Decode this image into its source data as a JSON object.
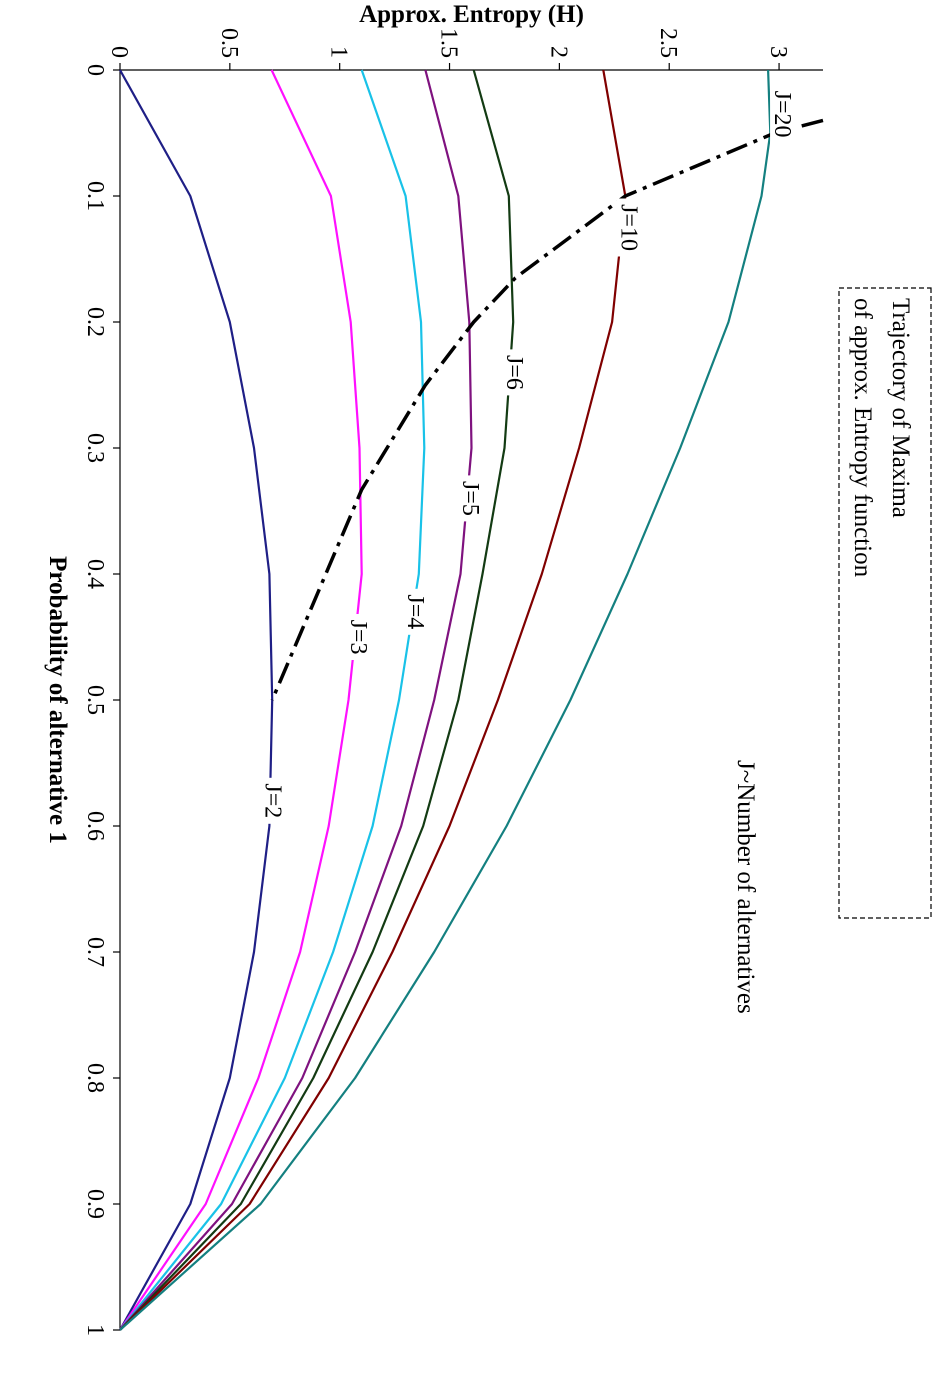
{
  "chart_data": {
    "type": "line",
    "orientation": "rotated-90-cw",
    "xlabel": "Probability of alternative 1",
    "ylabel": "Approx. Entropy (H)",
    "xlim": [
      0,
      1
    ],
    "ylim": [
      0,
      3.2
    ],
    "xticks": [
      "0",
      "0.1",
      "0.2",
      "0.3",
      "0.4",
      "0.5",
      "0.6",
      "0.7",
      "0.8",
      "0.9",
      "1"
    ],
    "yticks": [
      "0",
      "0.5",
      "1",
      "1.5",
      "2",
      "2.5",
      "3"
    ],
    "annotation": "J~Number of alternatives",
    "callout": {
      "lines": [
        "Trajectory of Maxima",
        "of approx. Entropy function"
      ]
    },
    "series": [
      {
        "name": "J=2",
        "color": "#1f1f86",
        "label_at": [
          0.58,
          0.68
        ],
        "points": [
          [
            0,
            0
          ],
          [
            0.1,
            0.32
          ],
          [
            0.2,
            0.5
          ],
          [
            0.3,
            0.61
          ],
          [
            0.4,
            0.68
          ],
          [
            0.5,
            0.693
          ],
          [
            0.6,
            0.68
          ],
          [
            0.7,
            0.61
          ],
          [
            0.8,
            0.5
          ],
          [
            0.9,
            0.32
          ],
          [
            1,
            0
          ]
        ]
      },
      {
        "name": "J=3",
        "color": "#ff10ff",
        "label_at": [
          0.45,
          1.07
        ],
        "points": [
          [
            0,
            0.69
          ],
          [
            0.1,
            0.96
          ],
          [
            0.2,
            1.05
          ],
          [
            0.3,
            1.09
          ],
          [
            0.4,
            1.1
          ],
          [
            0.5,
            1.04
          ],
          [
            0.6,
            0.95
          ],
          [
            0.7,
            0.82
          ],
          [
            0.8,
            0.63
          ],
          [
            0.9,
            0.39
          ],
          [
            1,
            0
          ]
        ]
      },
      {
        "name": "J=4",
        "color": "#19c2e8",
        "label_at": [
          0.43,
          1.33
        ],
        "points": [
          [
            0,
            1.1
          ],
          [
            0.1,
            1.3
          ],
          [
            0.2,
            1.37
          ],
          [
            0.3,
            1.385
          ],
          [
            0.4,
            1.36
          ],
          [
            0.5,
            1.27
          ],
          [
            0.6,
            1.15
          ],
          [
            0.7,
            0.97
          ],
          [
            0.8,
            0.75
          ],
          [
            0.9,
            0.46
          ],
          [
            1,
            0
          ]
        ]
      },
      {
        "name": "J=5",
        "color": "#7f127f",
        "label_at": [
          0.34,
          1.58
        ],
        "points": [
          [
            0,
            1.39
          ],
          [
            0.1,
            1.54
          ],
          [
            0.2,
            1.59
          ],
          [
            0.3,
            1.6
          ],
          [
            0.4,
            1.55
          ],
          [
            0.5,
            1.43
          ],
          [
            0.6,
            1.28
          ],
          [
            0.7,
            1.07
          ],
          [
            0.8,
            0.83
          ],
          [
            0.9,
            0.51
          ],
          [
            1,
            0
          ]
        ]
      },
      {
        "name": "J=6",
        "color": "#133b13",
        "label_at": [
          0.24,
          1.78
        ],
        "points": [
          [
            0,
            1.61
          ],
          [
            0.1,
            1.77
          ],
          [
            0.2,
            1.79
          ],
          [
            0.3,
            1.75
          ],
          [
            0.4,
            1.65
          ],
          [
            0.5,
            1.54
          ],
          [
            0.6,
            1.38
          ],
          [
            0.7,
            1.15
          ],
          [
            0.8,
            0.88
          ],
          [
            0.9,
            0.55
          ],
          [
            1,
            0
          ]
        ]
      },
      {
        "name": "J=10",
        "color": "#800000",
        "label_at": [
          0.125,
          2.3
        ],
        "points": [
          [
            0,
            2.2
          ],
          [
            0.1,
            2.3
          ],
          [
            0.2,
            2.24
          ],
          [
            0.3,
            2.09
          ],
          [
            0.4,
            1.92
          ],
          [
            0.5,
            1.72
          ],
          [
            0.6,
            1.5
          ],
          [
            0.7,
            1.24
          ],
          [
            0.8,
            0.95
          ],
          [
            0.9,
            0.59
          ],
          [
            1,
            0
          ]
        ]
      },
      {
        "name": "J=20",
        "color": "#148080",
        "label_at": [
          0.035,
          3.0
        ],
        "points": [
          [
            0,
            2.95
          ],
          [
            0.05,
            2.96
          ],
          [
            0.1,
            2.92
          ],
          [
            0.2,
            2.77
          ],
          [
            0.3,
            2.55
          ],
          [
            0.4,
            2.31
          ],
          [
            0.5,
            2.05
          ],
          [
            0.6,
            1.76
          ],
          [
            0.7,
            1.43
          ],
          [
            0.8,
            1.07
          ],
          [
            0.9,
            0.64
          ],
          [
            1,
            0
          ]
        ]
      },
      {
        "name": "",
        "color": "#000000",
        "style": "dash-dot",
        "points": [
          [
            0.04,
            3.2
          ],
          [
            0.05,
            2.98
          ],
          [
            0.1,
            2.3
          ],
          [
            0.165,
            1.8
          ],
          [
            0.2,
            1.61
          ],
          [
            0.25,
            1.39
          ],
          [
            0.333,
            1.1
          ],
          [
            0.5,
            0.693
          ]
        ]
      }
    ]
  }
}
